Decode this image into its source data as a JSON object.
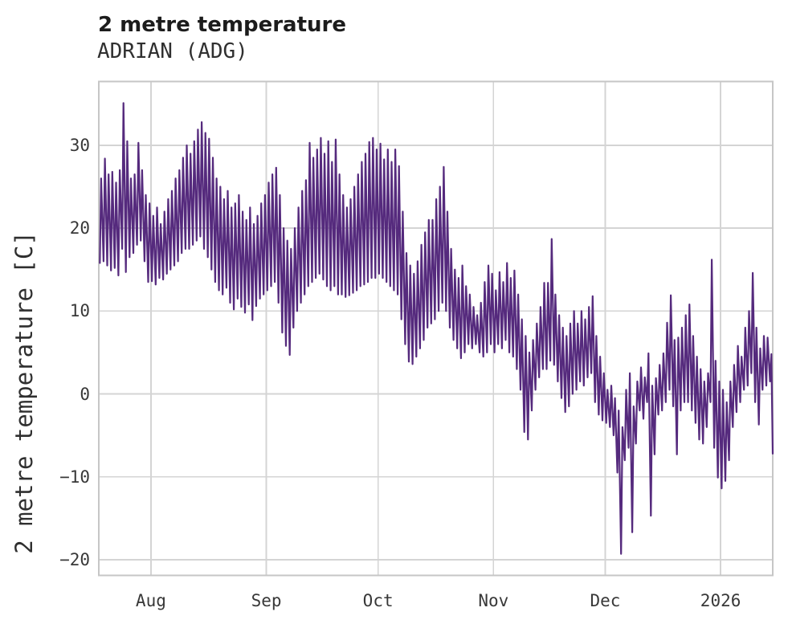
{
  "header": {
    "title": "2 metre temperature",
    "subtitle": "ADRIAN (ADG)"
  },
  "chart_data": {
    "type": "line",
    "title": "2 metre temperature",
    "subtitle": "ADRIAN (ADG)",
    "station_name": "ADRIAN",
    "station_code": "ADG",
    "xlabel": "",
    "ylabel": "2 metre temperature [C]",
    "unit": "C",
    "grid": true,
    "legend": "none",
    "line_color": "#552A7D",
    "grid_color": "#d4d4d4",
    "border_color": "#c6c6c6",
    "ylim": [
      -21.9,
      37.7
    ],
    "xlim_days": [
      0,
      181
    ],
    "start_date_estimate": "2025-07-18",
    "y_ticks": [
      {
        "label": "30",
        "value": 30
      },
      {
        "label": "20",
        "value": 20
      },
      {
        "label": "10",
        "value": 10
      },
      {
        "label": "0",
        "value": 0
      },
      {
        "label": "−10",
        "value": -10
      },
      {
        "label": "−20",
        "value": -20
      }
    ],
    "x_ticks": [
      {
        "label": "Aug",
        "day": 14
      },
      {
        "label": "Sep",
        "day": 45
      },
      {
        "label": "Oct",
        "day": 75
      },
      {
        "label": "Nov",
        "day": 106
      },
      {
        "label": "Dec",
        "day": 136
      },
      {
        "label": "2026",
        "day": 167
      }
    ],
    "series": [
      {
        "name": "2 metre temperature",
        "sampling": "daily min/max pairs (estimated from plot)",
        "tmax": [
          26,
          28.4,
          26.5,
          26.8,
          25.5,
          27,
          35.1,
          30.5,
          26,
          26.5,
          30.3,
          27,
          24,
          23,
          21.5,
          22.5,
          20.5,
          22,
          23.5,
          24.5,
          26,
          27,
          28.5,
          30,
          29,
          30.5,
          31.9,
          32.8,
          31.5,
          30.8,
          28.5,
          26,
          25,
          23.5,
          24.5,
          22.5,
          23,
          24,
          22,
          21,
          22.5,
          20.5,
          21.5,
          23,
          24,
          25.5,
          26.5,
          27.3,
          24,
          20,
          18.5,
          17.5,
          20,
          22.5,
          24.5,
          25.8,
          30.3,
          28.5,
          29.5,
          30.9,
          29,
          30.5,
          28,
          30.7,
          26.5,
          24,
          22.5,
          23.5,
          25,
          26.5,
          28,
          29,
          30.4,
          30.9,
          29.5,
          30.2,
          28.3,
          29.5,
          28,
          29.5,
          27.5,
          22,
          17,
          15.5,
          14.5,
          16,
          18,
          19.5,
          21,
          21,
          23.5,
          25,
          27.4,
          22,
          17.5,
          15,
          14,
          15.5,
          13,
          12,
          10.5,
          9.5,
          11,
          13.5,
          15.5,
          14.5,
          12.5,
          14.7,
          13.5,
          15.8,
          14,
          14.9,
          12,
          9,
          7,
          5,
          6.5,
          8.5,
          10.5,
          13.4,
          13.4,
          18.7,
          12,
          9.5,
          8,
          7,
          8.5,
          10,
          8.5,
          10,
          9,
          10.5,
          11.8,
          7,
          4.5,
          2.5,
          0.5,
          1,
          -0.5,
          -2,
          -4,
          0.5,
          2.5,
          -1.5,
          1.5,
          3.2,
          2,
          4.9,
          1,
          1.9,
          3.5,
          4.9,
          8.6,
          11.9,
          6.5,
          6.8,
          8,
          9.5,
          10.8,
          7,
          4.5,
          3,
          1.5,
          2.5,
          16.2,
          4,
          1.5,
          0.5,
          -1,
          1.5,
          3.5,
          5.8,
          4.5,
          8,
          10,
          14.6,
          8,
          5.5,
          7,
          6.8,
          4.8
        ],
        "tmin": [
          15.8,
          16,
          15.5,
          14.9,
          15.2,
          14.3,
          17.5,
          14.7,
          16.5,
          17,
          18,
          18.5,
          16,
          13.5,
          13.6,
          13.2,
          14,
          13.8,
          14.5,
          15,
          15.5,
          16,
          17,
          17.5,
          17.5,
          18,
          18.5,
          19,
          17.5,
          16.5,
          15,
          13.5,
          12.5,
          12,
          12.8,
          11,
          10.2,
          11.5,
          10.5,
          9.8,
          10.8,
          8.9,
          10.6,
          11.5,
          12,
          12.5,
          13,
          13.5,
          11,
          7.4,
          5.8,
          4.7,
          8,
          10,
          11,
          12,
          13,
          13.5,
          14,
          14.5,
          13.8,
          13,
          12.5,
          13,
          12,
          12,
          11.7,
          11.9,
          12.2,
          12.5,
          13,
          13.2,
          13.5,
          14,
          14,
          14.5,
          14,
          13.5,
          13,
          12.5,
          12,
          9,
          6,
          3.9,
          3.6,
          4.5,
          5.5,
          6.5,
          8,
          8.5,
          9,
          10,
          11,
          10,
          8,
          6.5,
          5.5,
          4.3,
          5,
          6,
          5.5,
          6,
          5,
          4.5,
          5,
          6,
          5,
          6,
          5.5,
          6.5,
          5,
          4.5,
          3,
          0.5,
          -4.6,
          -5.5,
          -2,
          0.5,
          2,
          3,
          3,
          4,
          3.5,
          1.5,
          -0.5,
          -2.2,
          -1.5,
          0,
          0.5,
          1.5,
          1,
          2,
          2.5,
          -1,
          -2.5,
          -3.2,
          -3.5,
          -4,
          -5,
          -9.5,
          -19.3,
          -8,
          -6.5,
          -16.7,
          -6,
          -2,
          -3,
          -1,
          -14.7,
          -7.3,
          -2.5,
          -2,
          -1,
          0.5,
          -1.5,
          -7.3,
          -2,
          -1,
          -1,
          -2,
          -3.5,
          -5.5,
          -6,
          -4,
          -1,
          -6.5,
          -10.1,
          -11.4,
          -10.5,
          -8,
          -4,
          -2.2,
          -1,
          0.5,
          1,
          2.5,
          -1,
          -3.7,
          0.5,
          1,
          1.5
        ],
        "final_point": {
          "day": 181,
          "value": -7.2
        }
      }
    ]
  }
}
